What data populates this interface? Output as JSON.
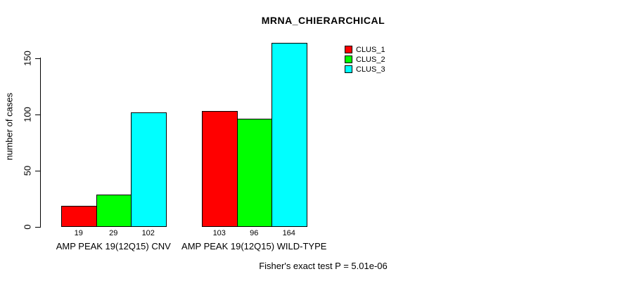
{
  "chart_data": {
    "type": "bar",
    "title": "MRNA_CHIERARCHICAL",
    "ylabel": "number of cases",
    "xlabel": "",
    "categories": [
      "AMP PEAK 19(12Q15) CNV",
      "AMP PEAK 19(12Q15) WILD-TYPE"
    ],
    "series": [
      {
        "name": "CLUS_1",
        "color": "#ff0000",
        "values": [
          19,
          103
        ]
      },
      {
        "name": "CLUS_2",
        "color": "#00ff00",
        "values": [
          29,
          96
        ]
      },
      {
        "name": "CLUS_3",
        "color": "#00ffff",
        "values": [
          102,
          164
        ]
      }
    ],
    "bar_value_labels": [
      [
        "19",
        "29",
        "102"
      ],
      [
        "103",
        "96",
        "164"
      ]
    ],
    "yticks": [
      "0",
      "50",
      "100",
      "150"
    ],
    "ylim": [
      0,
      168
    ],
    "grid": false,
    "legend_position": "top-right",
    "bar_border_color": "#000000",
    "background_color": "#ffffff",
    "annotation": "Fisher's exact test P = 5.01e-06"
  }
}
